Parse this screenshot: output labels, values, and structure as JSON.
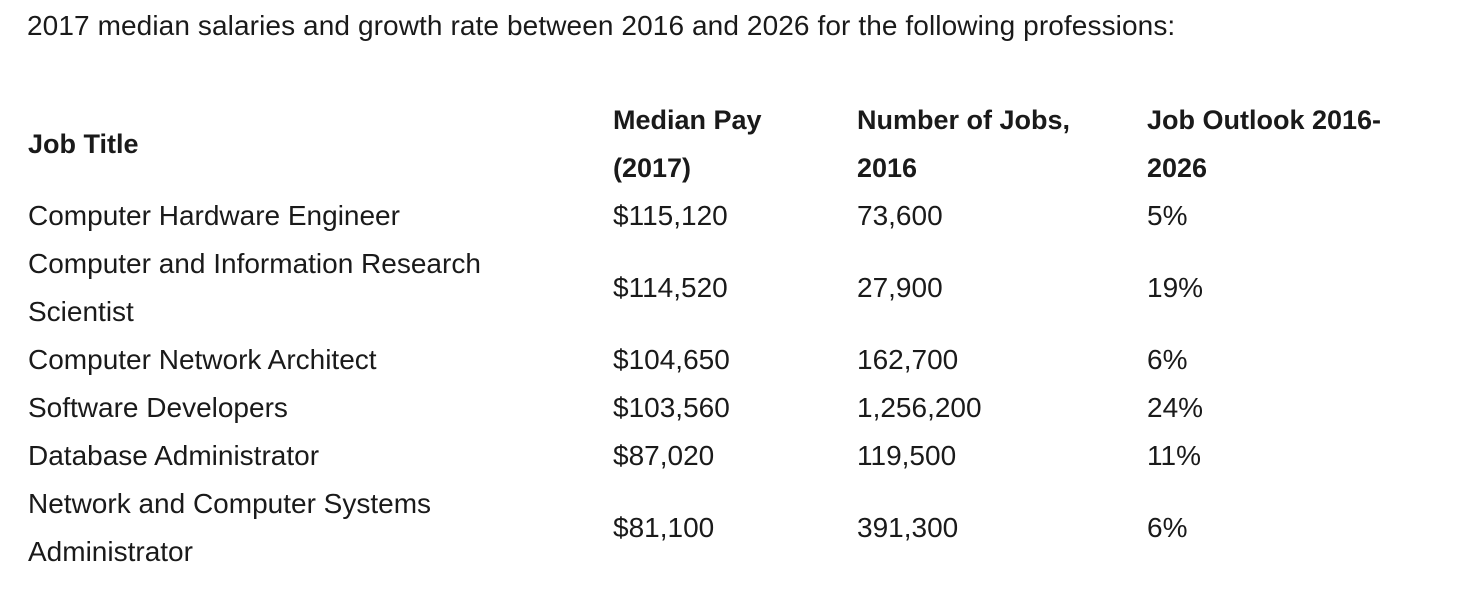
{
  "intro": "2017 median salaries and growth rate between 2016 and 2026 for the following professions:",
  "table": {
    "headers": {
      "job_title": "Job Title",
      "median_pay_line1": "Median Pay",
      "median_pay_line2": "(2017)",
      "num_jobs_line1": "Number of Jobs,",
      "num_jobs_line2": "2016",
      "outlook_line1": "Job Outlook 2016-",
      "outlook_line2": "2026"
    },
    "rows": [
      {
        "title_line1": "Computer Hardware Engineer",
        "title_line2": "",
        "median_pay": "$115,120",
        "num_jobs": "73,600",
        "outlook": "5%"
      },
      {
        "title_line1": "Computer and Information Research",
        "title_line2": "Scientist",
        "median_pay": "$114,520",
        "num_jobs": "27,900",
        "outlook": "19%"
      },
      {
        "title_line1": "Computer Network Architect",
        "title_line2": "",
        "median_pay": "$104,650",
        "num_jobs": "162,700",
        "outlook": "6%"
      },
      {
        "title_line1": "Software Developers",
        "title_line2": "",
        "median_pay": "$103,560",
        "num_jobs": "1,256,200",
        "outlook": "24%"
      },
      {
        "title_line1": "Database Administrator",
        "title_line2": "",
        "median_pay": "$87,020",
        "num_jobs": "119,500",
        "outlook": "11%"
      },
      {
        "title_line1": "Network and Computer Systems",
        "title_line2": "Administrator",
        "median_pay": "$81,100",
        "num_jobs": "391,300",
        "outlook": "6%"
      }
    ]
  }
}
